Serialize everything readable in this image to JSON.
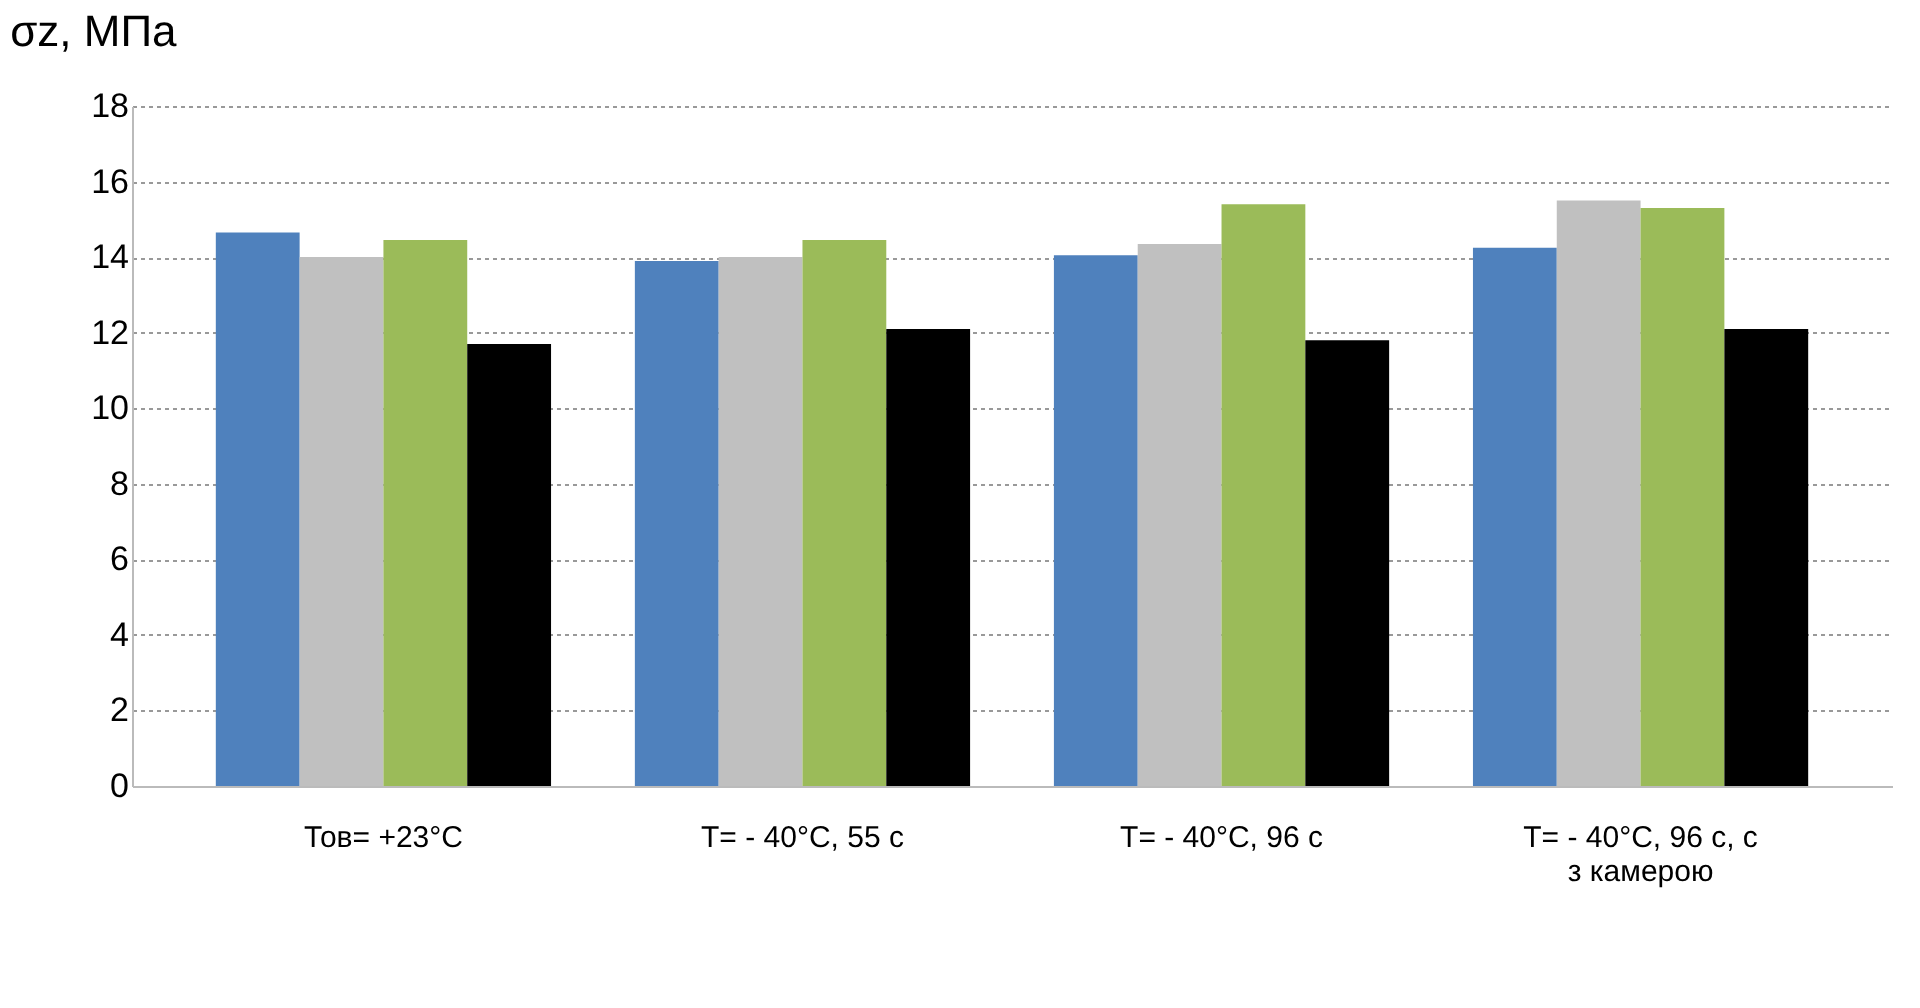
{
  "chart_data": {
    "type": "bar",
    "ylabel": "σz, МПа",
    "categories": [
      "Тов= +23°C",
      "T= - 40°C, 55 c",
      "T= - 40°C, 96 c",
      "T= - 40°C, 96 c, с\nз камерою"
    ],
    "series": [
      {
        "color": "#4f81bd",
        "values": [
          14.65,
          13.9,
          14.05,
          14.25
        ]
      },
      {
        "color": "#c0c0c0",
        "values": [
          14.0,
          14.0,
          14.35,
          15.5
        ]
      },
      {
        "color": "#9bbb59",
        "values": [
          14.45,
          14.45,
          15.4,
          15.3
        ]
      },
      {
        "color": "#000000",
        "values": [
          11.7,
          12.1,
          11.8,
          12.1
        ]
      }
    ],
    "ylim": [
      0,
      18
    ],
    "yticks": [
      0,
      2,
      4,
      6,
      8,
      10,
      12,
      14,
      16,
      18
    ],
    "grid": "y",
    "legend": false
  }
}
